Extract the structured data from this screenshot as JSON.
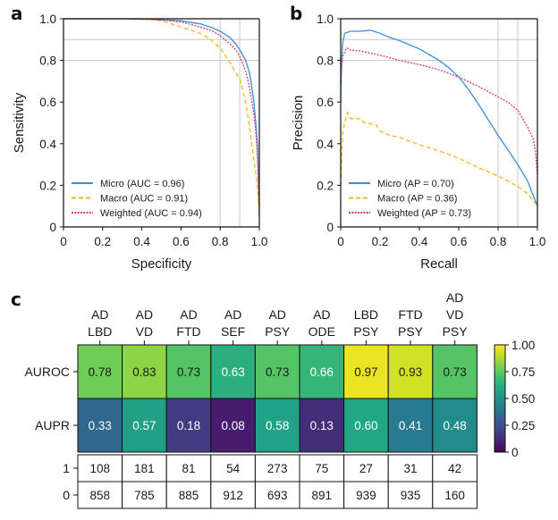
{
  "panels": {
    "a": "a",
    "b": "b",
    "c": "c"
  },
  "chart_data": [
    {
      "id": "roc",
      "type": "line",
      "title": "",
      "panel": "a",
      "xlabel": "Specificity",
      "ylabel": "Sensitivity",
      "xlim": [
        0,
        1
      ],
      "ylim": [
        0,
        1
      ],
      "x_ticks": [
        "0",
        "0.2",
        "0.4",
        "0.6",
        "0.8",
        "1.0"
      ],
      "y_ticks": [
        "0",
        "0.2",
        "0.4",
        "0.6",
        "0.8",
        "1.0"
      ],
      "reference_lines": {
        "x": [
          0.8,
          0.9
        ],
        "y": [
          0.8,
          0.9
        ]
      },
      "grid": false,
      "legend_position": "bottom-left",
      "series": [
        {
          "name": "Micro (AUC = 0.96)",
          "color": "#3a8fdc",
          "style": "solid",
          "x": [
            0,
            0.3,
            0.5,
            0.6,
            0.7,
            0.75,
            0.8,
            0.85,
            0.88,
            0.9,
            0.93,
            0.95,
            0.97,
            0.98,
            0.99,
            0.995,
            1.0
          ],
          "y": [
            1.0,
            1.0,
            0.995,
            0.99,
            0.975,
            0.96,
            0.94,
            0.91,
            0.88,
            0.85,
            0.8,
            0.74,
            0.62,
            0.52,
            0.4,
            0.25,
            0.05
          ]
        },
        {
          "name": "Macro (AUC = 0.91)",
          "color": "#f2b81e",
          "style": "dashed",
          "x": [
            0,
            0.4,
            0.5,
            0.55,
            0.6,
            0.65,
            0.7,
            0.75,
            0.8,
            0.85,
            0.88,
            0.9,
            0.93,
            0.95,
            0.97,
            0.99,
            1.0
          ],
          "y": [
            1.0,
            1.0,
            0.99,
            0.975,
            0.96,
            0.945,
            0.93,
            0.9,
            0.86,
            0.79,
            0.74,
            0.71,
            0.6,
            0.48,
            0.34,
            0.2,
            0.05
          ]
        },
        {
          "name": "Weighted (AUC = 0.94)",
          "color": "#d63c6c",
          "style": "dotted",
          "x": [
            0,
            0.4,
            0.5,
            0.6,
            0.7,
            0.75,
            0.8,
            0.85,
            0.88,
            0.9,
            0.93,
            0.95,
            0.97,
            0.98,
            0.99,
            1.0
          ],
          "y": [
            1.0,
            1.0,
            0.995,
            0.985,
            0.96,
            0.945,
            0.92,
            0.88,
            0.85,
            0.82,
            0.75,
            0.67,
            0.56,
            0.48,
            0.35,
            0.1
          ]
        }
      ]
    },
    {
      "id": "pr",
      "type": "line",
      "title": "",
      "panel": "b",
      "xlabel": "Recall",
      "ylabel": "Precision",
      "xlim": [
        0,
        1
      ],
      "ylim": [
        0,
        1
      ],
      "x_ticks": [
        "0",
        "0.2",
        "0.4",
        "0.6",
        "0.8",
        "1.0"
      ],
      "y_ticks": [
        "0",
        "0.2",
        "0.4",
        "0.6",
        "0.8",
        "1.0"
      ],
      "reference_lines": {
        "x": [
          0.8,
          0.9
        ],
        "y": [
          0.8,
          0.9
        ]
      },
      "grid": false,
      "legend_position": "bottom-left",
      "series": [
        {
          "name": "Micro (AP = 0.70)",
          "color": "#3a8fdc",
          "style": "solid",
          "x": [
            0,
            0.005,
            0.01,
            0.02,
            0.05,
            0.1,
            0.15,
            0.2,
            0.25,
            0.3,
            0.4,
            0.5,
            0.55,
            0.6,
            0.65,
            0.7,
            0.8,
            0.9,
            0.95,
            1.0
          ],
          "y": [
            0.6,
            0.8,
            0.88,
            0.93,
            0.94,
            0.94,
            0.945,
            0.93,
            0.91,
            0.895,
            0.855,
            0.8,
            0.765,
            0.72,
            0.66,
            0.59,
            0.44,
            0.3,
            0.22,
            0.1
          ]
        },
        {
          "name": "Macro (AP = 0.36)",
          "color": "#f2b81e",
          "style": "dashed",
          "x": [
            0,
            0.01,
            0.02,
            0.035,
            0.05,
            0.1,
            0.12,
            0.18,
            0.2,
            0.25,
            0.3,
            0.4,
            0.5,
            0.6,
            0.7,
            0.8,
            0.9,
            0.95,
            1.0
          ],
          "y": [
            0.2,
            0.45,
            0.5,
            0.55,
            0.52,
            0.52,
            0.5,
            0.49,
            0.46,
            0.44,
            0.43,
            0.395,
            0.365,
            0.33,
            0.285,
            0.245,
            0.195,
            0.16,
            0.1
          ]
        },
        {
          "name": "Weighted (AP = 0.73)",
          "color": "#d63c6c",
          "style": "dotted",
          "x": [
            0,
            0.005,
            0.01,
            0.03,
            0.05,
            0.1,
            0.2,
            0.3,
            0.4,
            0.5,
            0.6,
            0.7,
            0.8,
            0.85,
            0.9,
            0.95,
            0.98,
            0.99,
            1.0
          ],
          "y": [
            0.7,
            0.78,
            0.82,
            0.86,
            0.85,
            0.845,
            0.825,
            0.8,
            0.78,
            0.755,
            0.72,
            0.675,
            0.625,
            0.6,
            0.56,
            0.48,
            0.42,
            0.36,
            0.25
          ]
        }
      ]
    },
    {
      "id": "heatmap",
      "type": "heatmap",
      "panel": "c",
      "columns": [
        [
          "AD",
          "LBD"
        ],
        [
          "AD",
          "VD"
        ],
        [
          "AD",
          "FTD"
        ],
        [
          "AD",
          "SEF"
        ],
        [
          "AD",
          "PSY"
        ],
        [
          "AD",
          "ODE"
        ],
        [
          "LBD",
          "PSY"
        ],
        [
          "FTD",
          "PSY"
        ],
        [
          "AD",
          "VD",
          "PSY"
        ]
      ],
      "rows": [
        "AUROC",
        "AUPR"
      ],
      "values": [
        [
          0.78,
          0.83,
          0.73,
          0.63,
          0.73,
          0.66,
          0.97,
          0.93,
          0.73
        ],
        [
          0.33,
          0.57,
          0.18,
          0.08,
          0.58,
          0.13,
          0.6,
          0.41,
          0.48
        ]
      ],
      "value_labels": [
        [
          "0.78",
          "0.83",
          "0.73",
          "0.63",
          "0.73",
          "0.66",
          "0.97",
          "0.93",
          "0.73"
        ],
        [
          "0.33",
          "0.57",
          "0.18",
          "0.08",
          "0.58",
          "0.13",
          "0.60",
          "0.41",
          "0.48"
        ]
      ],
      "colormap": "viridis",
      "colorbar": {
        "range": [
          0,
          1
        ],
        "ticks": [
          "0",
          "0.25",
          "0.50",
          "0.75",
          "1.00"
        ],
        "tick_values": [
          0,
          0.25,
          0.5,
          0.75,
          1.0
        ]
      }
    },
    {
      "id": "counts",
      "type": "table",
      "panel": "c",
      "rows": [
        "1",
        "0"
      ],
      "values": [
        [
          "108",
          "181",
          "81",
          "54",
          "273",
          "75",
          "27",
          "31",
          "42"
        ],
        [
          "858",
          "785",
          "885",
          "912",
          "693",
          "891",
          "939",
          "935",
          "160"
        ]
      ]
    }
  ]
}
